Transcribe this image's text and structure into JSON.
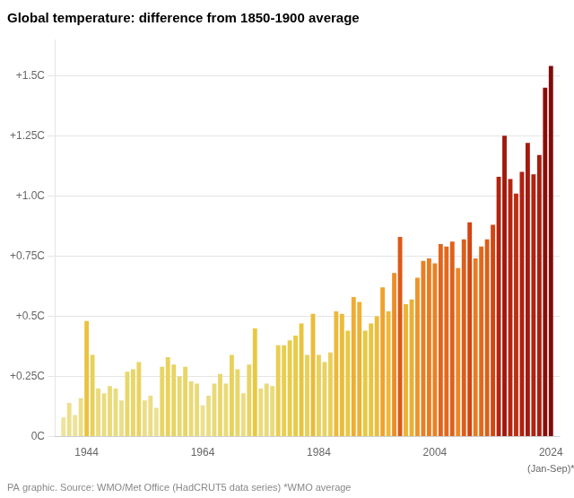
{
  "chart_data": {
    "type": "bar",
    "title": "Global temperature: difference from 1850-1900 average",
    "x": [
      1940,
      1941,
      1942,
      1943,
      1944,
      1945,
      1946,
      1947,
      1948,
      1949,
      1950,
      1951,
      1952,
      1953,
      1954,
      1955,
      1956,
      1957,
      1958,
      1959,
      1960,
      1961,
      1962,
      1963,
      1964,
      1965,
      1966,
      1967,
      1968,
      1969,
      1970,
      1971,
      1972,
      1973,
      1974,
      1975,
      1976,
      1977,
      1978,
      1979,
      1980,
      1981,
      1982,
      1983,
      1984,
      1985,
      1986,
      1987,
      1988,
      1989,
      1990,
      1991,
      1992,
      1993,
      1994,
      1995,
      1996,
      1997,
      1998,
      1999,
      2000,
      2001,
      2002,
      2003,
      2004,
      2005,
      2006,
      2007,
      2008,
      2009,
      2010,
      2011,
      2012,
      2013,
      2014,
      2015,
      2016,
      2017,
      2018,
      2019,
      2020,
      2021,
      2022,
      2023,
      2024
    ],
    "values": [
      0.08,
      0.14,
      0.09,
      0.16,
      0.48,
      0.34,
      0.2,
      0.18,
      0.21,
      0.2,
      0.15,
      0.27,
      0.28,
      0.31,
      0.15,
      0.17,
      0.12,
      0.29,
      0.33,
      0.3,
      0.25,
      0.29,
      0.23,
      0.22,
      0.13,
      0.17,
      0.22,
      0.26,
      0.22,
      0.34,
      0.28,
      0.18,
      0.3,
      0.45,
      0.2,
      0.22,
      0.21,
      0.38,
      0.38,
      0.4,
      0.42,
      0.47,
      0.34,
      0.51,
      0.34,
      0.31,
      0.35,
      0.52,
      0.51,
      0.44,
      0.58,
      0.56,
      0.44,
      0.47,
      0.5,
      0.62,
      0.52,
      0.68,
      0.83,
      0.55,
      0.57,
      0.66,
      0.73,
      0.74,
      0.72,
      0.8,
      0.79,
      0.81,
      0.7,
      0.82,
      0.89,
      0.74,
      0.79,
      0.82,
      0.88,
      1.08,
      1.25,
      1.07,
      1.01,
      1.1,
      1.22,
      1.09,
      1.17,
      1.45,
      1.54
    ],
    "colors": [
      "#ede39c",
      "#ecdf8c",
      "#ede299",
      "#ebde87",
      "#eac23d",
      "#e8d15a",
      "#eadb7d",
      "#eadc82",
      "#e9db7a",
      "#eadb7d",
      "#ebde8a",
      "#e8d66b",
      "#e8d669",
      "#e8d362",
      "#ebde8a",
      "#ebdd84",
      "#ece091",
      "#e8d566",
      "#e8d25d",
      "#e8d464",
      "#e8d870",
      "#e8d566",
      "#e9d975",
      "#e9da78",
      "#ece08f",
      "#ebdd84",
      "#e9da78",
      "#e8d76e",
      "#e9da78",
      "#e8d15a",
      "#e8d669",
      "#eadc82",
      "#e8d464",
      "#e8c840",
      "#eadb7d",
      "#e9da78",
      "#e9db7a",
      "#e8ce51",
      "#e8ce51",
      "#e8cc4c",
      "#e8ca47",
      "#e9c43e",
      "#e8d15a",
      "#ebbb3a",
      "#e8d15a",
      "#e8d362",
      "#e8d058",
      "#ecb939",
      "#ebbb3a",
      "#e8c942",
      "#efac32",
      "#eeb134",
      "#e8c942",
      "#e9c43e",
      "#ebbd3b",
      "#efa22e",
      "#ecb939",
      "#ec8e27",
      "#db5a17",
      "#edb335",
      "#eeae33",
      "#ed952a",
      "#e97e22",
      "#e97b21",
      "#ea8223",
      "#e0651b",
      "#e2691c",
      "#de621a",
      "#eb8825",
      "#dd5e19",
      "#d24411",
      "#e97b21",
      "#e2691c",
      "#dd5e19",
      "#d34712",
      "#b32310",
      "#9f190e",
      "#b52510",
      "#be2e10",
      "#b02010",
      "#a31a0e",
      "#b22210",
      "#a81d0f",
      "#890f0a",
      "#7f0b09"
    ],
    "xlim": [
      1938.5,
      2025.5
    ],
    "xticks": [
      1944,
      1964,
      1984,
      2004,
      2024
    ],
    "ylim": [
      0,
      1.65
    ],
    "yticks": [
      {
        "value": 0,
        "label": "0C"
      },
      {
        "value": 0.25,
        "label": "+0.25C"
      },
      {
        "value": 0.5,
        "label": "+0.5C"
      },
      {
        "value": 0.75,
        "label": "+0.75C"
      },
      {
        "value": 1.0,
        "label": "+1.0C"
      },
      {
        "value": 1.25,
        "label": "+1.25C"
      },
      {
        "value": 1.5,
        "label": "+1.5C"
      }
    ],
    "grid": true,
    "annotations": [
      {
        "text": "(Jan-Sep)*",
        "x": 2024
      },
      {
        "text": "PA graphic. Source: WMO/Met Office (HadCRUT5 data series) *WMO average"
      }
    ]
  }
}
